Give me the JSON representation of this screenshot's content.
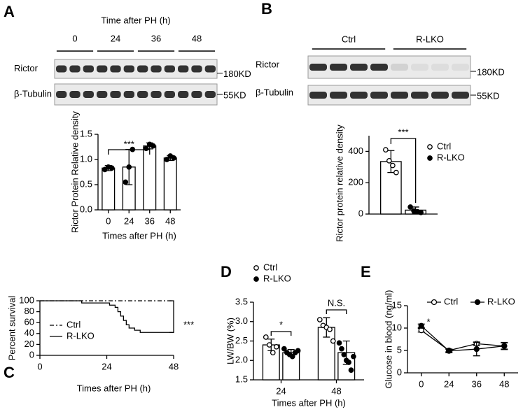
{
  "blots": [
    {
      "panel": "A",
      "title": "Time after PH (h)",
      "lanes": [
        "0",
        "24",
        "36",
        "48"
      ],
      "bands": [
        {
          "name": "Rictor",
          "size": "180KD"
        },
        {
          "name": "β-Tubulin",
          "size": "55KD"
        }
      ]
    },
    {
      "panel": "B",
      "lanes": [
        "Ctrl",
        "R-LKO"
      ],
      "bands": [
        {
          "name": "Rictor",
          "size": "180KD"
        },
        {
          "name": "β-Tubulin",
          "size": "55KD"
        }
      ]
    }
  ],
  "chart_data": [
    {
      "type": "bar",
      "ylabel": "Rictor Protein Relative density",
      "xlabel": "Times after PH (h)",
      "categories": [
        "0",
        "24",
        "36",
        "48"
      ],
      "series": [
        {
          "color": "#000000",
          "values": [
            0.83,
            0.85,
            1.27,
            1.03
          ],
          "errors": [
            0.05,
            0.35,
            0.06,
            0.05
          ],
          "points": [
            [
              0.8,
              0.85,
              0.83
            ],
            [
              0.55,
              0.85,
              1.2
            ],
            [
              1.22,
              1.3,
              1.27
            ],
            [
              1.0,
              1.07,
              1.03
            ]
          ]
        }
      ],
      "ylim": [
        0,
        1.5
      ],
      "yticks": [
        {
          "value": 0,
          "label": "0.0"
        },
        {
          "value": 0.5,
          "label": "0.5"
        },
        {
          "value": 1,
          "label": "1.0"
        },
        {
          "value": 1.5,
          "label": "1.5"
        }
      ],
      "annotations": [
        "***"
      ]
    },
    {
      "type": "bar",
      "ylabel": "Rictor protein relative density",
      "categories": [
        null
      ],
      "series": [
        {
          "name": "Ctrl",
          "color": "#ffffff",
          "values": [
            335
          ],
          "errors": [
            70
          ],
          "points": [
            [
              410,
              340,
              310,
              265
            ]
          ]
        },
        {
          "name": "R-LKO",
          "color": "#000000",
          "values": [
            25
          ],
          "errors": [
            20
          ],
          "points": [
            [
              45,
              20,
              15,
              10
            ]
          ]
        }
      ],
      "ylim": [
        0,
        500
      ],
      "yticks": [
        0,
        200,
        400
      ],
      "annotations": [
        "***"
      ]
    },
    {
      "type": "line",
      "panel": "C",
      "step": true,
      "ylabel": "Percent survival",
      "xlabel": "Times after PH (h)",
      "series": [
        {
          "name": "Ctrl",
          "color": "#000000",
          "dash": true,
          "x": [
            0,
            48
          ],
          "values": [
            100,
            100
          ]
        },
        {
          "name": "R-LKO",
          "color": "#000000",
          "x": [
            0,
            15,
            25,
            27,
            28,
            29,
            30,
            31,
            32,
            34,
            36,
            48
          ],
          "values": [
            100,
            96,
            92,
            88,
            80,
            72,
            64,
            56,
            50,
            46,
            42,
            42
          ]
        }
      ],
      "xlim": [
        0,
        48
      ],
      "xticks": [
        0,
        24,
        48
      ],
      "ylim": [
        0,
        100
      ],
      "yticks": [
        0,
        20,
        40,
        60,
        80,
        100
      ],
      "annotations": [
        "***"
      ]
    },
    {
      "type": "bar",
      "panel": "D",
      "ylabel": "LW/BW (%)",
      "xlabel": "Times after PH (h)",
      "categories": [
        "24",
        "48"
      ],
      "series": [
        {
          "name": "Ctrl",
          "color": "#ffffff",
          "values": [
            2.4,
            2.85
          ],
          "errors": [
            0.15,
            0.25
          ],
          "points": [
            [
              2.6,
              2.4,
              2.2,
              2.35
            ],
            [
              3.05,
              2.9,
              2.85,
              2.8,
              2.5
            ]
          ]
        },
        {
          "name": "R-LKO",
          "color": "#000000",
          "values": [
            2.2,
            2.2
          ],
          "errors": [
            0.08,
            0.3
          ],
          "points": [
            [
              2.3,
              2.2,
              2.15,
              2.1,
              2.2,
              2.25
            ],
            [
              2.45,
              2.3,
              2.15,
              2.0,
              1.95,
              1.75,
              2.1
            ]
          ]
        }
      ],
      "ylim": [
        1.5,
        3.5
      ],
      "yticks": [
        {
          "value": 1.5,
          "label": "1.5"
        },
        {
          "value": 2,
          "label": "2.0"
        },
        {
          "value": 2.5,
          "label": "2.5"
        },
        {
          "value": 3,
          "label": "3.0"
        },
        {
          "value": 3.5,
          "label": "3.5"
        }
      ],
      "annotations": [
        "*",
        "N.S."
      ]
    },
    {
      "type": "line",
      "panel": "E",
      "ylabel": "Glucose in blood (ng/ml)",
      "categories": [
        "0",
        "24",
        "36",
        "48"
      ],
      "series": [
        {
          "name": "Ctrl",
          "color": "#ffffff",
          "values": [
            9.5,
            5,
            6.5,
            6
          ],
          "errors": [
            0.4,
            0.3,
            0.4,
            0.8
          ]
        },
        {
          "name": "R-LKO",
          "color": "#000000",
          "values": [
            10.5,
            4.9,
            5.3,
            6
          ],
          "errors": [
            0.4,
            0.4,
            1.5,
            0.7
          ]
        }
      ],
      "ylim": [
        0,
        15
      ],
      "yticks": [
        0,
        5,
        10,
        15
      ],
      "annotations": [
        "*"
      ]
    }
  ]
}
